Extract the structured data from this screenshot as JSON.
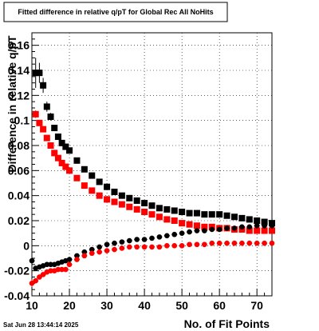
{
  "chart_data": {
    "type": "scatter",
    "title": "Fitted difference in relative q/pT for Global Rec All NoHits",
    "xlabel": "No. of Fit Points",
    "ylabel": "Difference in relative q/pT",
    "timestamp": "Sat Jun 28 13:44:14 2025",
    "xlim": [
      10,
      74
    ],
    "ylim": [
      -0.04,
      0.17
    ],
    "grid": true,
    "xticks": [
      10,
      20,
      30,
      40,
      50,
      60,
      70
    ],
    "xtick_labels": [
      "10",
      "20",
      "30",
      "40",
      "50",
      "60",
      "70"
    ],
    "yticks": [
      -0.04,
      -0.02,
      0,
      0.02,
      0.04,
      0.06,
      0.08,
      0.1,
      0.12,
      0.14,
      0.16
    ],
    "ytick_labels": [
      "-0.04",
      "-0.02",
      "0",
      "0.02",
      "0.04",
      "0.06",
      "0.08",
      "0.1",
      "0.12",
      "0.14",
      "0.16"
    ],
    "series": [
      {
        "color": "#000000",
        "marker": "square",
        "x": [
          11,
          12,
          13,
          14,
          15,
          16,
          17,
          18,
          19,
          20,
          22,
          24,
          26,
          28,
          30,
          32,
          34,
          36,
          38,
          40,
          42,
          44,
          46,
          48,
          50,
          52,
          54,
          56,
          58,
          60,
          62,
          64,
          66,
          68,
          70,
          72,
          74
        ],
        "y": [
          0.138,
          0.138,
          0.128,
          0.111,
          0.103,
          0.094,
          0.087,
          0.082,
          0.079,
          0.076,
          0.068,
          0.061,
          0.056,
          0.051,
          0.047,
          0.043,
          0.04,
          0.038,
          0.036,
          0.034,
          0.032,
          0.03,
          0.029,
          0.028,
          0.027,
          0.026,
          0.026,
          0.025,
          0.025,
          0.025,
          0.024,
          0.023,
          0.022,
          0.021,
          0.02,
          0.019,
          0.018
        ],
        "yerr": [
          0.012,
          0.008,
          0.006,
          0.004,
          0.003,
          0.002,
          0.002,
          0.0015,
          0.001,
          0.001,
          0.001,
          0.001,
          0.001,
          0.001,
          0.001,
          0.001,
          0.001,
          0.001,
          0.001,
          0.001,
          0.001,
          0.001,
          0.001,
          0.001,
          0.001,
          0.001,
          0.001,
          0.001,
          0.001,
          0.001,
          0.001,
          0.001,
          0.001,
          0.001,
          0.001,
          0.001,
          0.001
        ]
      },
      {
        "color": "#ff0000",
        "marker": "square",
        "x": [
          11,
          12,
          13,
          14,
          15,
          16,
          17,
          18,
          19,
          20,
          22,
          24,
          26,
          28,
          30,
          32,
          34,
          36,
          38,
          40,
          42,
          44,
          46,
          48,
          50,
          52,
          54,
          56,
          58,
          60,
          62,
          64,
          66,
          68,
          70,
          72,
          74
        ],
        "y": [
          0.105,
          0.098,
          0.093,
          0.086,
          0.08,
          0.074,
          0.07,
          0.066,
          0.063,
          0.06,
          0.054,
          0.048,
          0.044,
          0.04,
          0.037,
          0.035,
          0.033,
          0.031,
          0.029,
          0.027,
          0.025,
          0.023,
          0.021,
          0.02,
          0.018,
          0.017,
          0.016,
          0.015,
          0.015,
          0.014,
          0.014,
          0.013,
          0.013,
          0.012,
          0.012,
          0.012,
          0.012
        ],
        "yerr": [
          0.003,
          0.002,
          0.002,
          0.0015,
          0.001,
          0.001,
          0.001,
          0.001,
          0.001,
          0.001,
          0.001,
          0.001,
          0.001,
          0.001,
          0.001,
          0.001,
          0.001,
          0.001,
          0.001,
          0.001,
          0.001,
          0.001,
          0.001,
          0.001,
          0.001,
          0.001,
          0.001,
          0.001,
          0.001,
          0.001,
          0.001,
          0.001,
          0.001,
          0.001,
          0.001,
          0.001,
          0.001
        ]
      },
      {
        "color": "#000000",
        "marker": "circle",
        "x": [
          10,
          11,
          12,
          13,
          14,
          15,
          16,
          17,
          18,
          19,
          20,
          22,
          24,
          26,
          28,
          30,
          32,
          34,
          36,
          38,
          40,
          42,
          44,
          46,
          48,
          50,
          52,
          54,
          56,
          58,
          60,
          62,
          64,
          66,
          68,
          70,
          72,
          74
        ],
        "y": [
          -0.012,
          -0.018,
          -0.017,
          -0.016,
          -0.015,
          -0.015,
          -0.015,
          -0.014,
          -0.013,
          -0.012,
          -0.011,
          -0.008,
          -0.005,
          -0.003,
          -0.001,
          0.001,
          0.002,
          0.003,
          0.004,
          0.005,
          0.005,
          0.006,
          0.007,
          0.008,
          0.009,
          0.01,
          0.011,
          0.012,
          0.012,
          0.013,
          0.013,
          0.014,
          0.014,
          0.015,
          0.015,
          0.016,
          0.016,
          0.016
        ],
        "yerr": [
          0.002,
          0.002,
          0.002,
          0.002,
          0.002,
          0.002,
          0.001,
          0.001,
          0.001,
          0.001,
          0.001,
          0.001,
          0.001,
          0.001,
          0.001,
          0.001,
          0.001,
          0.001,
          0.001,
          0.001,
          0.001,
          0.001,
          0.001,
          0.001,
          0.001,
          0.001,
          0.001,
          0.001,
          0.001,
          0.001,
          0.001,
          0.001,
          0.001,
          0.001,
          0.001,
          0.001,
          0.001,
          0.001
        ]
      },
      {
        "color": "#ff0000",
        "marker": "circle",
        "x": [
          10,
          11,
          12,
          13,
          14,
          15,
          16,
          17,
          18,
          19,
          20,
          22,
          24,
          26,
          28,
          30,
          32,
          34,
          36,
          38,
          40,
          42,
          44,
          46,
          48,
          50,
          52,
          54,
          56,
          58,
          60,
          62,
          64,
          66,
          68,
          70,
          72,
          74
        ],
        "y": [
          -0.03,
          -0.028,
          -0.025,
          -0.023,
          -0.021,
          -0.02,
          -0.02,
          -0.019,
          -0.019,
          -0.019,
          -0.015,
          -0.011,
          -0.008,
          -0.006,
          -0.005,
          -0.004,
          -0.003,
          -0.002,
          -0.001,
          -0.001,
          -0.001,
          -0.001,
          -0.001,
          0.0,
          0.0,
          0.0,
          0.001,
          0.001,
          0.001,
          0.002,
          0.002,
          0.002,
          0.002,
          0.002,
          0.002,
          0.002,
          0.002,
          0.002
        ],
        "yerr": [
          0.003,
          0.002,
          0.002,
          0.002,
          0.002,
          0.001,
          0.001,
          0.001,
          0.001,
          0.001,
          0.001,
          0.001,
          0.001,
          0.001,
          0.001,
          0.001,
          0.001,
          0.001,
          0.001,
          0.001,
          0.001,
          0.001,
          0.001,
          0.001,
          0.001,
          0.001,
          0.001,
          0.001,
          0.001,
          0.001,
          0.001,
          0.001,
          0.001,
          0.001,
          0.001,
          0.001,
          0.001,
          0.001
        ]
      }
    ]
  }
}
